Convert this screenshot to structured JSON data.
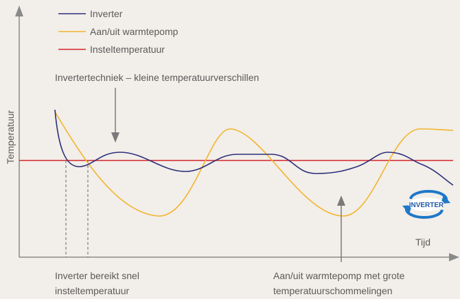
{
  "legend": {
    "items": [
      "Inverter",
      "Aan/uit warmtepomp",
      "Insteltemperatuur"
    ]
  },
  "axes": {
    "y_label": "Temperatuur",
    "x_label": "Tijd"
  },
  "annotations": {
    "top": "Invertertechniek – kleine temperatuurverschillen",
    "bottom_left": [
      "Inverter bereikt snel",
      "insteltemperatuur"
    ],
    "bottom_right": [
      "Aan/uit warmtepomp met grote",
      "temperatuurschommelingen"
    ]
  },
  "logo": "INVERTER"
}
